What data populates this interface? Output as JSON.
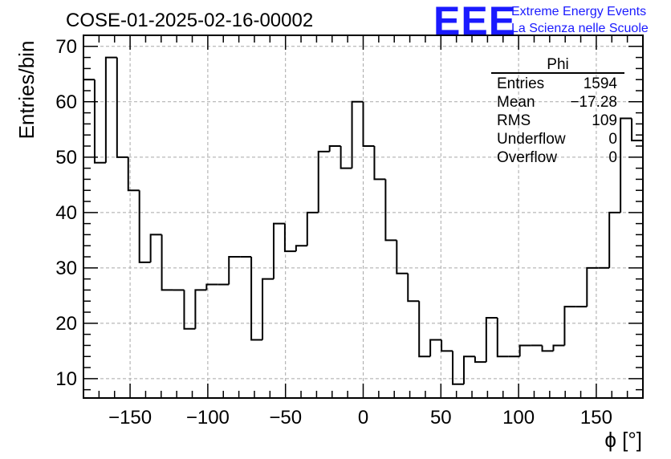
{
  "title": "COSE-01-2025-02-16-00002",
  "logo": {
    "mark": "EEE",
    "line1": "Extreme Energy Events",
    "line2": "La Scienza nelle Scuole",
    "color": "#1a1aff"
  },
  "stats": {
    "name": "Phi",
    "rows": [
      {
        "label": "Entries",
        "value": "1594"
      },
      {
        "label": "Mean",
        "value": "−17.28"
      },
      {
        "label": "RMS",
        "value": "109"
      },
      {
        "label": "Underflow",
        "value": "0"
      },
      {
        "label": "Overflow",
        "value": "0"
      }
    ]
  },
  "chart_data": {
    "type": "histogram",
    "title": "COSE-01-2025-02-16-00002",
    "xlabel": "ϕ [°]",
    "ylabel": "Entries/bin",
    "xlim": [
      -180,
      180
    ],
    "ylim": [
      6.5,
      72
    ],
    "bin_width": 7.2,
    "x_ticks": [
      -150,
      -100,
      -50,
      0,
      50,
      100,
      150
    ],
    "x_tick_labels": [
      "−150",
      "−100",
      "−50",
      "0",
      "50",
      "100",
      "150"
    ],
    "y_ticks": [
      10,
      20,
      30,
      40,
      50,
      60,
      70
    ],
    "y_tick_labels": [
      "10",
      "20",
      "30",
      "40",
      "50",
      "60",
      "70"
    ],
    "grid": true,
    "values": [
      64,
      49,
      68,
      50,
      44,
      31,
      36,
      26,
      26,
      19,
      26,
      27,
      27,
      32,
      32,
      17,
      28,
      38,
      33,
      34,
      40,
      51,
      52,
      48,
      60,
      52,
      46,
      35,
      29,
      24,
      14,
      17,
      15,
      9,
      14,
      13,
      21,
      14,
      14,
      16,
      16,
      15,
      16,
      23,
      23,
      30,
      30,
      40,
      57,
      53
    ]
  }
}
